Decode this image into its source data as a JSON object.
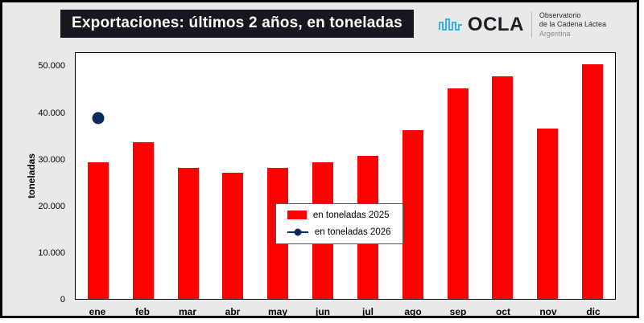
{
  "header": {
    "title": "Exportaciones: últimos 2 años, en toneladas",
    "title_bg_color": "#17171f",
    "logo": {
      "name": "OCLA",
      "icon": "waveform-icon",
      "icon_color": "#35b4e5",
      "subtitle_line1": "Observatorio",
      "subtitle_line2": "de la Cadena Láctea",
      "subtitle_line3": "Argentina"
    }
  },
  "chart_data": {
    "type": "bar",
    "title": "Exportaciones: últimos 2 años, en toneladas",
    "categories": [
      "ene",
      "feb",
      "mar",
      "abr",
      "may",
      "jun",
      "jul",
      "ago",
      "sep",
      "oct",
      "nov",
      "dic"
    ],
    "series": [
      {
        "name": "en toneladas 2025",
        "type": "bar",
        "color": "#fe0000",
        "values": [
          29400,
          33700,
          28200,
          27200,
          28300,
          29400,
          30900,
          36300,
          45400,
          48000,
          36800,
          50600
        ]
      },
      {
        "name": "en toneladas 2026",
        "type": "point",
        "color": "#0b2a5b",
        "values": [
          39000,
          null,
          null,
          null,
          null,
          null,
          null,
          null,
          null,
          null,
          null,
          null
        ]
      }
    ],
    "xlabel": "",
    "ylabel": "toneladas",
    "ylim": [
      0,
      53000
    ],
    "yticks": [
      0,
      10000,
      20000,
      30000,
      40000,
      50000
    ],
    "ytick_labels": [
      "0",
      "10.000",
      "20.000",
      "30.000",
      "40.000",
      "50.000"
    ],
    "grid": false,
    "legend_position": "center-bottom"
  }
}
